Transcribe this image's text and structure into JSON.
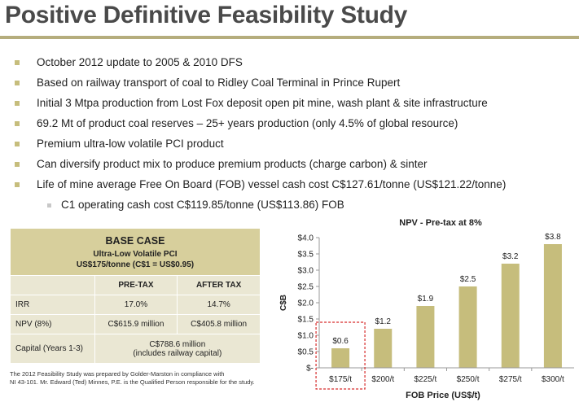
{
  "title": "Positive Definitive Feasibility Study",
  "bullets": [
    "October 2012 update to 2005 & 2010 DFS",
    "Based on railway transport of coal to Ridley Coal Terminal in Prince Rupert",
    "Initial 3 Mtpa production from Lost Fox deposit open pit mine, wash plant & site infrastructure",
    "69.2 Mt of product coal reserves – 25+ years production (only 4.5% of global resource)",
    "Premium ultra-low volatile PCI product",
    "Can diversify product mix to produce premium products (charge carbon) & sinter",
    "Life of mine average Free On Board (FOB) vessel cash cost C$127.61/tonne (US$121.22/tonne)"
  ],
  "sub_bullet": "C1 operating cash cost C$119.85/tonne (US$113.86) FOB",
  "table": {
    "header": "BASE CASE",
    "subheader1": "Ultra-Low Volatile PCI",
    "subheader2": "US$175/tonne (C$1 = US$0.95)",
    "col_pre": "PRE-TAX",
    "col_after": "AFTER TAX",
    "rows": [
      {
        "label": "IRR",
        "pre": "17.0%",
        "after": "14.7%"
      },
      {
        "label": "NPV (8%)",
        "pre": "C$615.9 million",
        "after": "C$405.8 million"
      }
    ],
    "capital_label": "Capital (Years 1-3)",
    "capital_value1": "C$788.6 million",
    "capital_value2": "(includes railway capital)"
  },
  "footnote1": "The 2012 Feasibility Study was prepared by Golder-Marston in compliance with",
  "footnote2": "NI 43-101.  Mr. Edward (Ted) Minnes, P.E. is the Qualified Person responsible for the study.",
  "chart_data": {
    "type": "bar",
    "title": "NPV - Pre-tax at 8%",
    "xlabel": "FOB Price (US$/t)",
    "ylabel": "C$B",
    "categories": [
      "$175/t",
      "$200/t",
      "$225/t",
      "$250/t",
      "$275/t",
      "$300/t"
    ],
    "values": [
      0.6,
      1.2,
      1.9,
      2.5,
      3.2,
      3.8
    ],
    "data_labels": [
      "$0.6",
      "$1.2",
      "$1.9",
      "$2.5",
      "$3.2",
      "$3.8"
    ],
    "yticks": [
      "$-",
      "$0.5",
      "$1.0",
      "$1.5",
      "$2.0",
      "$2.5",
      "$3.0",
      "$3.5",
      "$4.0"
    ],
    "ylim": [
      0,
      4.0
    ],
    "highlighted_category": "$175/t",
    "bar_color": "#c6bd7c",
    "highlight_color": "#d62a2a"
  }
}
